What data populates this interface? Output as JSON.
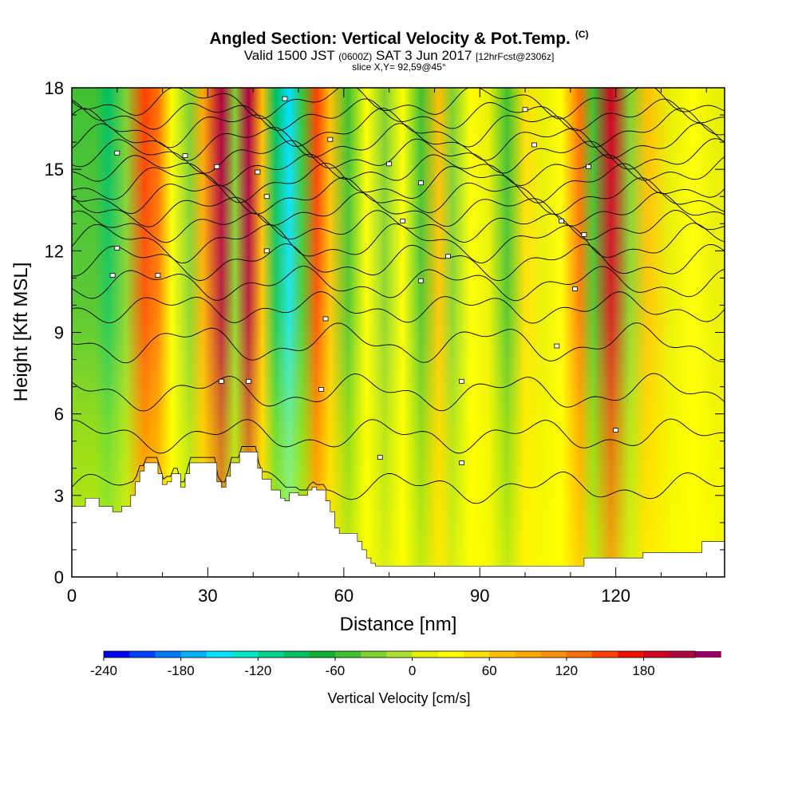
{
  "header": {
    "title": "Angled Section: Vertical Velocity & Pot.Temp.",
    "title_mark": "(C)",
    "valid_prefix": "Valid 1500 JST",
    "valid_utc": "(0600Z)",
    "valid_date": "SAT 3 Jun 2017",
    "forecast": "[12hrFcst@2306z]",
    "slice": "slice X,Y= 92,59@45°"
  },
  "chart_data": {
    "type": "heatmap",
    "xlabel": "Distance [nm]",
    "ylabel": "Height [Kft MSL]",
    "xlim": [
      0,
      144
    ],
    "ylim": [
      0,
      18
    ],
    "x_ticks": [
      "0",
      "30",
      "60",
      "90",
      "120"
    ],
    "x_tick_values": [
      0,
      30,
      60,
      90,
      120
    ],
    "y_ticks": [
      "0",
      "3",
      "6",
      "9",
      "12",
      "15",
      "18"
    ],
    "y_tick_values": [
      0,
      3,
      6,
      9,
      12,
      15,
      18
    ],
    "velocity_columns": [
      {
        "x": 5,
        "w": -60
      },
      {
        "x": 8,
        "w": -90
      },
      {
        "x": 12,
        "w": -30
      },
      {
        "x": 16,
        "w": 150
      },
      {
        "x": 19,
        "w": 120
      },
      {
        "x": 22,
        "w": 30
      },
      {
        "x": 26,
        "w": -30
      },
      {
        "x": 29,
        "w": 90
      },
      {
        "x": 33,
        "w": 200
      },
      {
        "x": 36,
        "w": -30
      },
      {
        "x": 39,
        "w": 210
      },
      {
        "x": 42,
        "w": 60
      },
      {
        "x": 45,
        "w": -90
      },
      {
        "x": 48,
        "w": -150
      },
      {
        "x": 51,
        "w": -60
      },
      {
        "x": 54,
        "w": 150
      },
      {
        "x": 57,
        "w": 60
      },
      {
        "x": 61,
        "w": -60
      },
      {
        "x": 65,
        "w": 30
      },
      {
        "x": 69,
        "w": -30
      },
      {
        "x": 73,
        "w": 30
      },
      {
        "x": 77,
        "w": -60
      },
      {
        "x": 81,
        "w": 60
      },
      {
        "x": 84,
        "w": -40
      },
      {
        "x": 88,
        "w": 30
      },
      {
        "x": 92,
        "w": 0
      },
      {
        "x": 96,
        "w": -60
      },
      {
        "x": 100,
        "w": 40
      },
      {
        "x": 104,
        "w": 0
      },
      {
        "x": 108,
        "w": 30
      },
      {
        "x": 112,
        "w": 120
      },
      {
        "x": 115,
        "w": -60
      },
      {
        "x": 119,
        "w": 180
      },
      {
        "x": 123,
        "w": -30
      },
      {
        "x": 127,
        "w": 60
      },
      {
        "x": 132,
        "w": 0
      },
      {
        "x": 137,
        "w": 30
      },
      {
        "x": 142,
        "w": 0
      }
    ],
    "terrain_kft": [
      [
        0,
        2.6
      ],
      [
        3,
        2.9
      ],
      [
        6,
        2.6
      ],
      [
        9,
        2.4
      ],
      [
        11,
        2.6
      ],
      [
        13,
        3.0
      ],
      [
        14,
        3.5
      ],
      [
        15,
        3.9
      ],
      [
        16,
        4.2
      ],
      [
        18,
        4.2
      ],
      [
        19,
        3.8
      ],
      [
        20,
        3.4
      ],
      [
        21,
        3.5
      ],
      [
        22,
        3.8
      ],
      [
        24,
        3.3
      ],
      [
        25,
        3.8
      ],
      [
        26,
        4.2
      ],
      [
        31,
        4.2
      ],
      [
        32,
        3.5
      ],
      [
        33,
        3.3
      ],
      [
        34,
        3.7
      ],
      [
        35,
        4.2
      ],
      [
        37,
        4.6
      ],
      [
        40,
        4.6
      ],
      [
        41,
        4.0
      ],
      [
        42,
        3.6
      ],
      [
        44,
        3.2
      ],
      [
        46,
        2.9
      ],
      [
        47,
        2.8
      ],
      [
        48,
        3.1
      ],
      [
        50,
        3.0
      ],
      [
        52,
        3.2
      ],
      [
        53,
        3.3
      ],
      [
        54,
        3.2
      ],
      [
        56,
        2.8
      ],
      [
        57,
        2.4
      ],
      [
        58,
        1.8
      ],
      [
        59,
        1.6
      ],
      [
        62,
        1.6
      ],
      [
        63,
        1.3
      ],
      [
        64,
        1.0
      ],
      [
        65,
        0.7
      ],
      [
        66,
        0.5
      ],
      [
        67,
        0.4
      ],
      [
        106,
        0.4
      ],
      [
        112,
        0.4
      ],
      [
        113,
        0.7
      ],
      [
        116,
        0.7
      ],
      [
        126,
        0.9
      ],
      [
        129,
        0.9
      ],
      [
        130,
        0.9
      ],
      [
        138,
        0.9
      ],
      [
        139,
        1.3
      ],
      [
        144,
        1.3
      ]
    ],
    "isentrope_labels": [
      {
        "x": 10,
        "y": 15.6
      },
      {
        "x": 25,
        "y": 15.5
      },
      {
        "x": 32,
        "y": 15.1
      },
      {
        "x": 41,
        "y": 14.9
      },
      {
        "x": 47,
        "y": 17.6
      },
      {
        "x": 57,
        "y": 16.1
      },
      {
        "x": 70,
        "y": 15.2
      },
      {
        "x": 77,
        "y": 14.5
      },
      {
        "x": 100,
        "y": 17.2
      },
      {
        "x": 102,
        "y": 15.9
      },
      {
        "x": 114,
        "y": 15.1
      },
      {
        "x": 10,
        "y": 12.1
      },
      {
        "x": 9,
        "y": 11.1
      },
      {
        "x": 19,
        "y": 11.1
      },
      {
        "x": 43,
        "y": 14.0
      },
      {
        "x": 43,
        "y": 12.0
      },
      {
        "x": 73,
        "y": 13.1
      },
      {
        "x": 83,
        "y": 11.8
      },
      {
        "x": 77,
        "y": 10.9
      },
      {
        "x": 108,
        "y": 13.1
      },
      {
        "x": 113,
        "y": 12.6
      },
      {
        "x": 56,
        "y": 9.5
      },
      {
        "x": 111,
        "y": 10.6
      },
      {
        "x": 33,
        "y": 7.2
      },
      {
        "x": 39,
        "y": 7.2
      },
      {
        "x": 55,
        "y": 6.9
      },
      {
        "x": 86,
        "y": 7.2
      },
      {
        "x": 107,
        "y": 8.5
      },
      {
        "x": 68,
        "y": 4.4
      },
      {
        "x": 86,
        "y": 4.2
      },
      {
        "x": 120,
        "y": 5.4
      }
    ],
    "isentrope_levels_kft": [
      3.3,
      5.2,
      6.8,
      8.6,
      9.9,
      10.8,
      11.6,
      12.3,
      12.9,
      13.5,
      14.0,
      14.5,
      15.0,
      15.5,
      16.0,
      16.5,
      17.0,
      17.5
    ],
    "colorbar": {
      "label": "Vertical Velocity [cm/s]",
      "tick_labels": [
        "-240",
        "-180",
        "-120",
        "-60",
        "0",
        "60",
        "120",
        "180"
      ],
      "tick_values": [
        -240,
        -180,
        -120,
        -60,
        0,
        60,
        120,
        180
      ],
      "min": -240,
      "max": 220,
      "step": 20,
      "colors": [
        "#0000ee",
        "#0040ff",
        "#0078ff",
        "#00b0ff",
        "#00e0ff",
        "#00e8c8",
        "#00d090",
        "#00c060",
        "#10b030",
        "#40c030",
        "#80d030",
        "#b0e030",
        "#e8f000",
        "#ffff00",
        "#ffe000",
        "#ffc000",
        "#ffa800",
        "#ff9000",
        "#ff7000",
        "#ff4000",
        "#ee1000",
        "#d00020",
        "#b00040",
        "#900060"
      ]
    }
  }
}
